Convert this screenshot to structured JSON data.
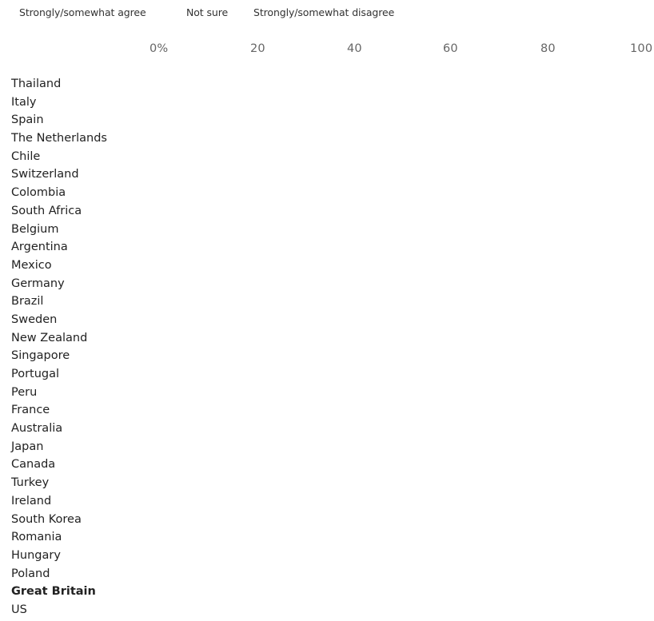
{
  "chart_data": {
    "type": "bar",
    "orientation": "horizontal",
    "stacked": true,
    "title": "",
    "xlabel": "",
    "ylabel": "",
    "xlim": [
      0,
      100
    ],
    "x_ticks": [
      "0%",
      "20",
      "40",
      "60",
      "80",
      "100"
    ],
    "legend": {
      "placement": "top-left",
      "entries": [
        "Strongly/somewhat agree",
        "Not sure",
        "Strongly/somewhat disagree"
      ]
    },
    "categories": [
      "Thailand",
      "Italy",
      "Spain",
      "The Netherlands",
      "Chile",
      "Switzerland",
      "Colombia",
      "South Africa",
      "Belgium",
      "Argentina",
      "Mexico",
      "Germany",
      "Brazil",
      "Sweden",
      "New Zealand",
      "Singapore",
      "Portugal",
      "Peru",
      "France",
      "Australia",
      "Japan",
      "Canada",
      "Turkey",
      "Ireland",
      "South Korea",
      "Romania",
      "Hungary",
      "Poland",
      "Great Britain",
      "US"
    ],
    "highlighted_category": "Great Britain",
    "grid": false
  }
}
